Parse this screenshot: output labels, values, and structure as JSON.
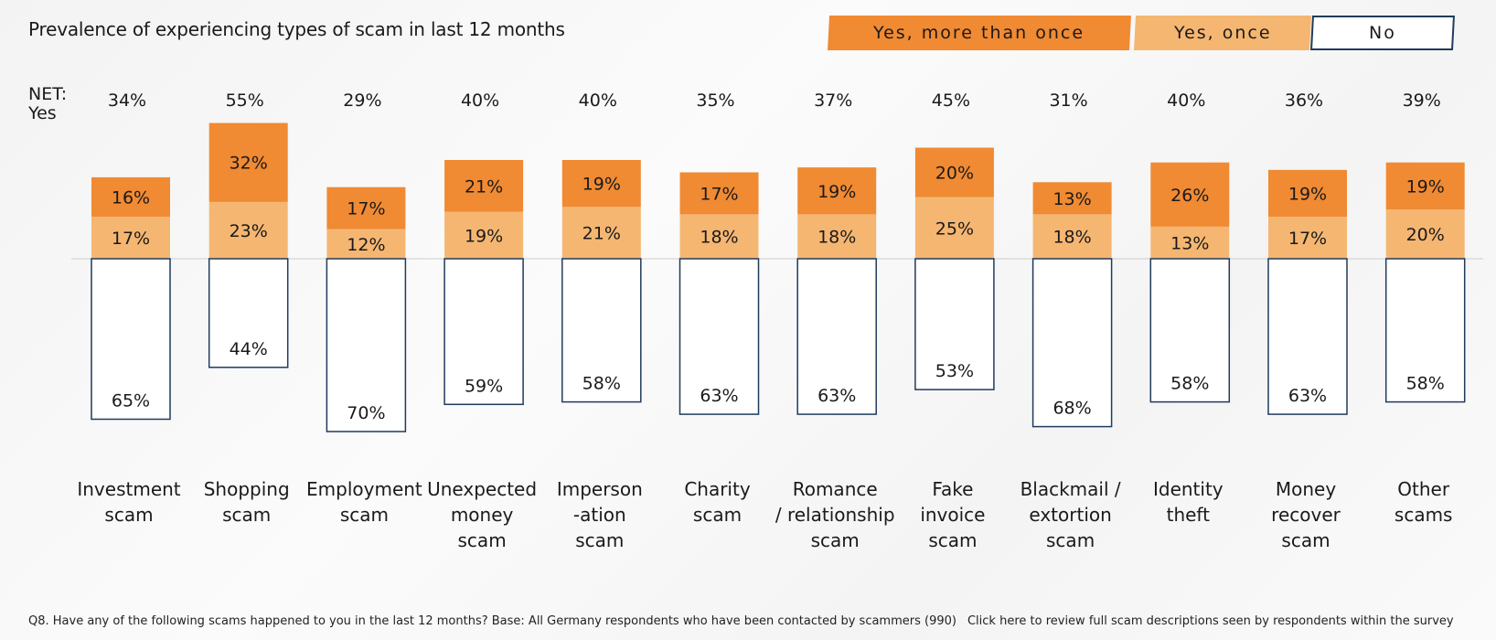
{
  "title": "Prevalence of experiencing types of scam in last 12 months",
  "net_label": "NET:\nYes",
  "footnote": {
    "question": "Q8. Have any of the following scams happened to you in the last 12 months? Base: All Germany respondents who have been contacted by scammers (990)",
    "link": "Click here to review full scam descriptions seen by respondents within the survey"
  },
  "colors": {
    "more": "#f08a33",
    "once": "#f5b672",
    "no_border": "#1f3b5c",
    "no_fill": "#ffffff"
  },
  "chart_data": {
    "type": "bar",
    "stacked": true,
    "title": "Prevalence of experiencing types of scam in last 12 months",
    "legend_position": "top-right",
    "categories": [
      [
        "Investment",
        "scam"
      ],
      [
        "Shopping",
        "scam"
      ],
      [
        "Employment",
        "scam"
      ],
      [
        "Unexpected",
        "money",
        "scam"
      ],
      [
        "Imperson",
        "-ation",
        "scam"
      ],
      [
        "Charity",
        "scam"
      ],
      [
        "Romance",
        "/ relationship",
        "scam"
      ],
      [
        "Fake",
        "invoice",
        "scam"
      ],
      [
        "Blackmail /",
        "extortion",
        "scam"
      ],
      [
        "Identity",
        "theft"
      ],
      [
        "Money",
        "recover",
        "scam"
      ],
      [
        "Other",
        "scams"
      ]
    ],
    "net_yes": [
      "34%",
      "55%",
      "29%",
      "40%",
      "40%",
      "35%",
      "37%",
      "45%",
      "31%",
      "40%",
      "36%",
      "39%"
    ],
    "series": [
      {
        "name": "Yes, more than once",
        "values": [
          16,
          32,
          17,
          21,
          19,
          17,
          19,
          20,
          13,
          26,
          19,
          19
        ]
      },
      {
        "name": "Yes, once",
        "values": [
          17,
          23,
          12,
          19,
          21,
          18,
          18,
          25,
          18,
          13,
          17,
          20
        ]
      },
      {
        "name": "No",
        "values": [
          65,
          44,
          70,
          59,
          58,
          63,
          63,
          53,
          68,
          58,
          63,
          58
        ]
      }
    ],
    "unit": "%"
  }
}
